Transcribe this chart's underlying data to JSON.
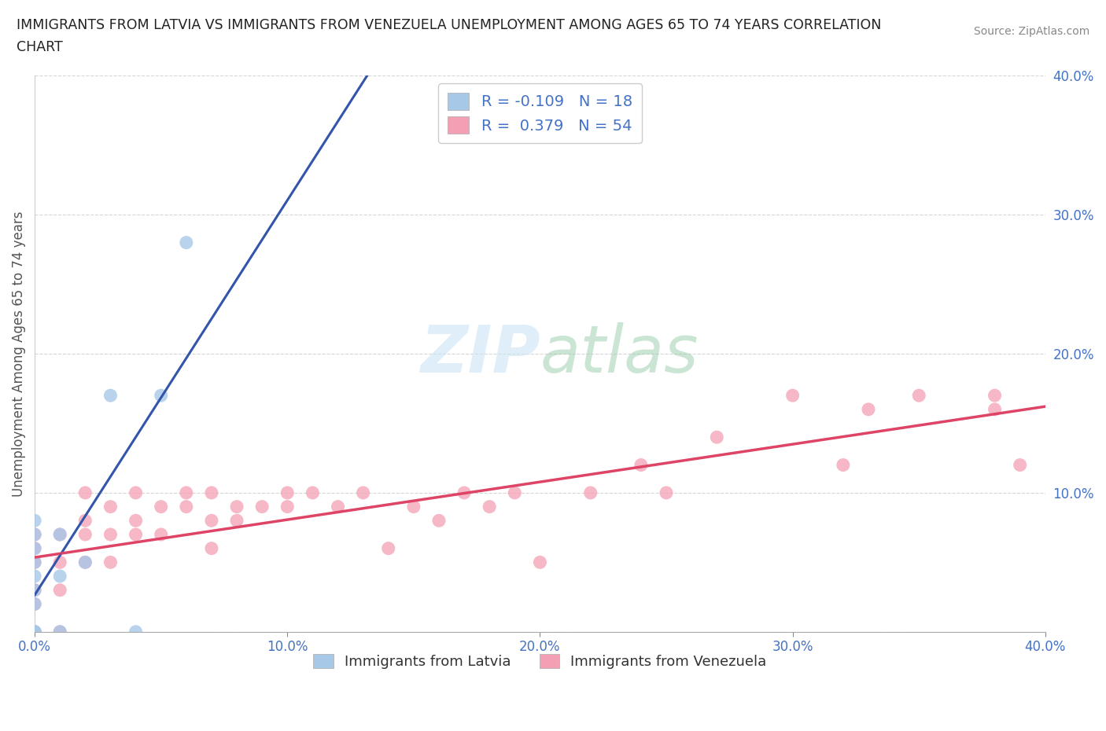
{
  "title_line1": "IMMIGRANTS FROM LATVIA VS IMMIGRANTS FROM VENEZUELA UNEMPLOYMENT AMONG AGES 65 TO 74 YEARS CORRELATION",
  "title_line2": "CHART",
  "source": "Source: ZipAtlas.com",
  "ylabel": "Unemployment Among Ages 65 to 74 years",
  "xlim": [
    0.0,
    0.4
  ],
  "ylim": [
    0.0,
    0.4
  ],
  "xticks": [
    0.0,
    0.1,
    0.2,
    0.3,
    0.4
  ],
  "yticks": [
    0.0,
    0.1,
    0.2,
    0.3,
    0.4
  ],
  "xticklabels": [
    "0.0%",
    "10.0%",
    "20.0%",
    "30.0%",
    "40.0%"
  ],
  "yticklabels": [
    "",
    "10.0%",
    "20.0%",
    "30.0%",
    "40.0%"
  ],
  "legend_labels": [
    "Immigrants from Latvia",
    "Immigrants from Venezuela"
  ],
  "legend_R": [
    -0.109,
    0.379
  ],
  "legend_N": [
    18,
    54
  ],
  "latvia_color": "#a8c8e8",
  "venezuela_color": "#f4a0b4",
  "latvia_line_color": "#3355aa",
  "venezuela_line_color": "#dd4466",
  "latvia_scatter_x": [
    0.0,
    0.0,
    0.0,
    0.0,
    0.0,
    0.0,
    0.0,
    0.0,
    0.0,
    0.0,
    0.01,
    0.01,
    0.01,
    0.02,
    0.03,
    0.04,
    0.05,
    0.06
  ],
  "latvia_scatter_y": [
    0.0,
    0.0,
    0.0,
    0.02,
    0.03,
    0.04,
    0.05,
    0.06,
    0.07,
    0.08,
    0.0,
    0.04,
    0.07,
    0.05,
    0.17,
    0.0,
    0.17,
    0.28
  ],
  "venezuela_scatter_x": [
    0.0,
    0.0,
    0.0,
    0.0,
    0.0,
    0.0,
    0.0,
    0.01,
    0.01,
    0.01,
    0.01,
    0.02,
    0.02,
    0.02,
    0.02,
    0.03,
    0.03,
    0.03,
    0.04,
    0.04,
    0.04,
    0.05,
    0.05,
    0.06,
    0.06,
    0.07,
    0.07,
    0.07,
    0.08,
    0.08,
    0.09,
    0.1,
    0.1,
    0.11,
    0.12,
    0.13,
    0.14,
    0.15,
    0.16,
    0.17,
    0.18,
    0.19,
    0.2,
    0.22,
    0.24,
    0.25,
    0.27,
    0.3,
    0.32,
    0.33,
    0.35,
    0.38,
    0.38,
    0.39
  ],
  "venezuela_scatter_y": [
    0.0,
    0.0,
    0.02,
    0.03,
    0.05,
    0.06,
    0.07,
    0.0,
    0.03,
    0.05,
    0.07,
    0.05,
    0.07,
    0.08,
    0.1,
    0.05,
    0.07,
    0.09,
    0.07,
    0.08,
    0.1,
    0.07,
    0.09,
    0.09,
    0.1,
    0.06,
    0.08,
    0.1,
    0.08,
    0.09,
    0.09,
    0.1,
    0.09,
    0.1,
    0.09,
    0.1,
    0.06,
    0.09,
    0.08,
    0.1,
    0.09,
    0.1,
    0.05,
    0.1,
    0.12,
    0.1,
    0.14,
    0.17,
    0.12,
    0.16,
    0.17,
    0.16,
    0.17,
    0.12
  ]
}
